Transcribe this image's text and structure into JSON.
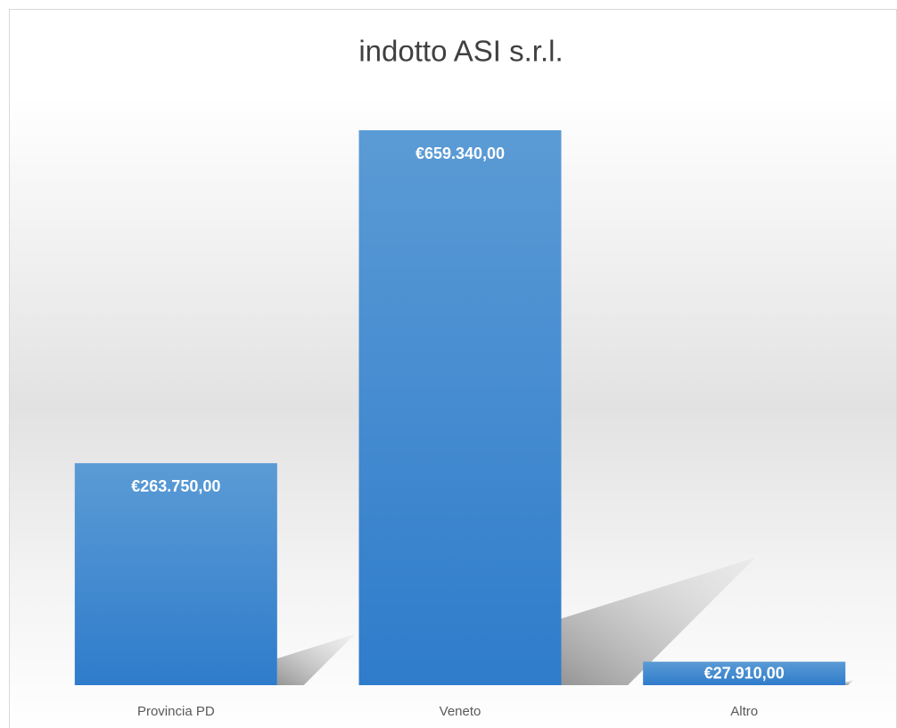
{
  "chart_data": {
    "type": "bar",
    "title": "indotto ASI s.r.l.",
    "categories": [
      "Provincia PD",
      "Veneto",
      "Altro"
    ],
    "values": [
      263750,
      659340,
      27910
    ],
    "value_labels": [
      "€263.750,00",
      "€659.340,00",
      "€27.910,00"
    ],
    "color": "#4a8fd6"
  }
}
